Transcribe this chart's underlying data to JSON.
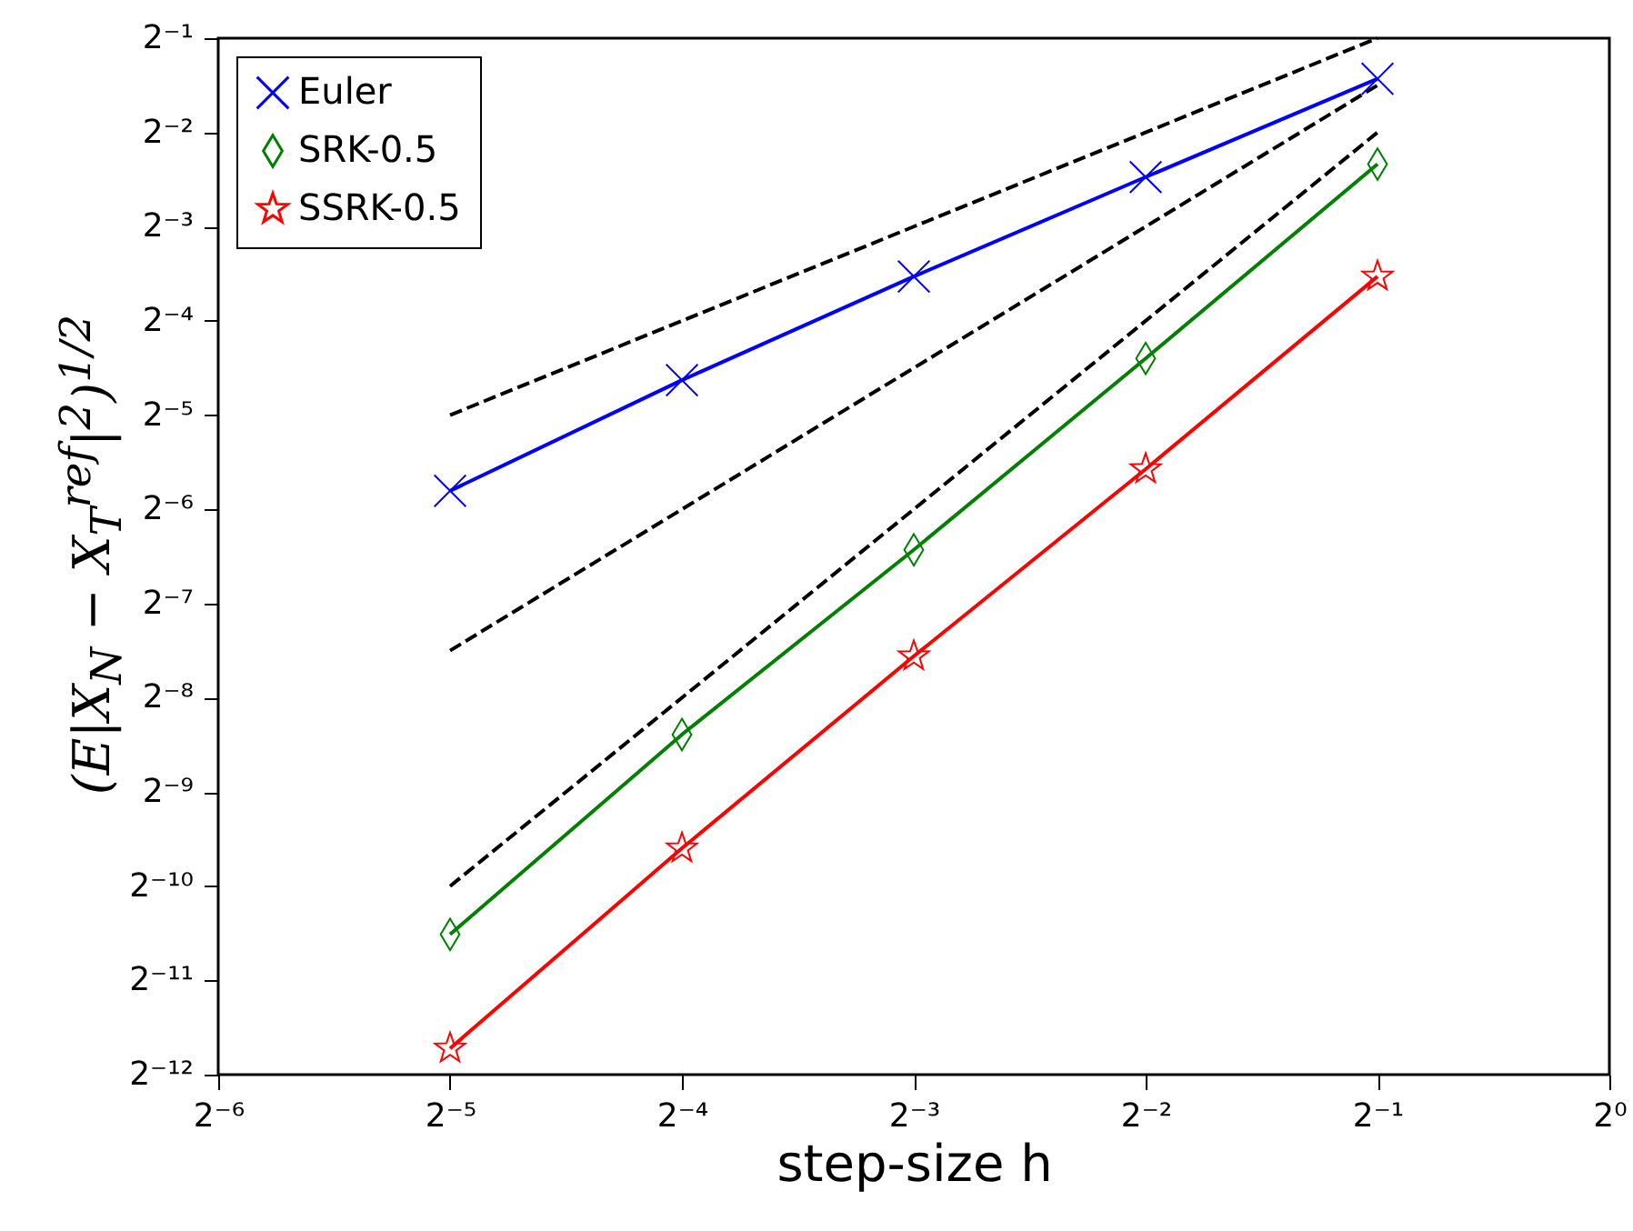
{
  "chart_data": {
    "type": "line",
    "xlabel": "step-size h",
    "ylabel": "(E|X$_{N}$ − X$_{T}$$^{ref}$|$^{2}$)$^{1/2}$",
    "log": "xy",
    "grid": false,
    "legend": "top left",
    "x": [
      0.03125,
      0.0625,
      0.125,
      0.25,
      0.5
    ],
    "series": [
      {
        "name": "Euler",
        "color": "#0000ff",
        "marker": "cross",
        "values": [
          0.0179,
          0.0404,
          0.0866,
          0.18,
          0.371
        ]
      },
      {
        "name": "SRK-0.5",
        "color": "#008000",
        "marker": "diamond",
        "values": [
          0.000685,
          0.00298,
          0.0116,
          0.0474,
          0.198
        ]
      },
      {
        "name": "SSRK-0.5",
        "color": "#ff0000",
        "marker": "star",
        "values": [
          0.000296,
          0.00129,
          0.0053,
          0.021,
          0.0866
        ]
      },
      {
        "color": "#000000",
        "line_style": "dashed",
        "marker": "none",
        "values": [
          0.03125,
          0.0625,
          0.125,
          0.25,
          0.5
        ]
      },
      {
        "color": "#000000",
        "line_style": "dashed",
        "marker": "none",
        "values": [
          0.005524,
          0.015625,
          0.04419,
          0.125,
          0.3536
        ]
      },
      {
        "color": "#000000",
        "line_style": "dashed",
        "marker": "none",
        "values": [
          0.0009766,
          0.003906,
          0.015625,
          0.0625,
          0.25
        ]
      }
    ],
    "xlim": [
      0.015625,
      1
    ],
    "ylim": [
      0.000244140625,
      0.5
    ],
    "xticks": [
      {
        "value": 0.015625,
        "label": "2⁻⁶"
      },
      {
        "value": 0.03125,
        "label": "2⁻⁵"
      },
      {
        "value": 0.0625,
        "label": "2⁻⁴"
      },
      {
        "value": 0.125,
        "label": "2⁻³"
      },
      {
        "value": 0.25,
        "label": "2⁻²"
      },
      {
        "value": 0.5,
        "label": "2⁻¹"
      },
      {
        "value": 1,
        "label": "2⁰"
      }
    ],
    "yticks": [
      {
        "value": 0.000244140625,
        "label": "2⁻¹²"
      },
      {
        "value": 0.00048828125,
        "label": "2⁻¹¹"
      },
      {
        "value": 0.0009765625,
        "label": "2⁻¹⁰"
      },
      {
        "value": 0.001953125,
        "label": "2⁻⁹"
      },
      {
        "value": 0.00390625,
        "label": "2⁻⁸"
      },
      {
        "value": 0.0078125,
        "label": "2⁻⁷"
      },
      {
        "value": 0.015625,
        "label": "2⁻⁶"
      },
      {
        "value": 0.03125,
        "label": "2⁻⁵"
      },
      {
        "value": 0.0625,
        "label": "2⁻⁴"
      },
      {
        "value": 0.125,
        "label": "2⁻³"
      },
      {
        "value": 0.25,
        "label": "2⁻²"
      },
      {
        "value": 0.5,
        "label": "2⁻¹"
      }
    ]
  }
}
